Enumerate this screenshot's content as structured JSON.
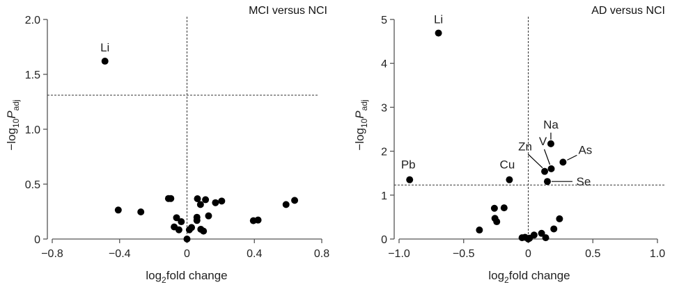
{
  "chart_data": [
    {
      "type": "scatter",
      "title": "MCI versus NCI",
      "xlabel": {
        "prefix": "log",
        "sub": "2",
        "suffix": "fold change"
      },
      "ylabel": {
        "prefix": "−log",
        "sub": "10",
        "mid": "P",
        "sub2": "adj"
      },
      "xlim": [
        -0.8,
        0.8
      ],
      "ylim": [
        0,
        2.0
      ],
      "xticks": [
        -0.8,
        -0.4,
        0,
        0.4,
        0.8
      ],
      "xtick_labels": [
        "−0.8",
        "−0.4",
        "0",
        "0.4",
        "0.8"
      ],
      "yticks": [
        0,
        0.5,
        1.0,
        1.5,
        2.0
      ],
      "ytick_labels": [
        "0",
        "0.5",
        "1.0",
        "1.5",
        "2.0"
      ],
      "threshold": 1.31,
      "points": [
        {
          "x": -0.487,
          "y": 1.62,
          "label": "Li"
        },
        {
          "x": -0.408,
          "y": 0.264
        },
        {
          "x": -0.274,
          "y": 0.247
        },
        {
          "x": -0.11,
          "y": 0.369
        },
        {
          "x": -0.096,
          "y": 0.369
        },
        {
          "x": -0.062,
          "y": 0.194
        },
        {
          "x": -0.034,
          "y": 0.158
        },
        {
          "x": -0.076,
          "y": 0.11
        },
        {
          "x": -0.048,
          "y": 0.084
        },
        {
          "x": 0.0,
          "y": 0.0
        },
        {
          "x": 0.014,
          "y": 0.084
        },
        {
          "x": 0.027,
          "y": 0.105
        },
        {
          "x": 0.062,
          "y": 0.367
        },
        {
          "x": 0.08,
          "y": 0.314
        },
        {
          "x": 0.11,
          "y": 0.358
        },
        {
          "x": 0.059,
          "y": 0.198
        },
        {
          "x": 0.059,
          "y": 0.169
        },
        {
          "x": 0.128,
          "y": 0.211
        },
        {
          "x": 0.082,
          "y": 0.089
        },
        {
          "x": 0.098,
          "y": 0.072
        },
        {
          "x": 0.169,
          "y": 0.331
        },
        {
          "x": 0.206,
          "y": 0.346
        },
        {
          "x": 0.394,
          "y": 0.167
        },
        {
          "x": 0.422,
          "y": 0.173
        },
        {
          "x": 0.588,
          "y": 0.314
        },
        {
          "x": 0.639,
          "y": 0.352
        }
      ]
    },
    {
      "type": "scatter",
      "title": "AD versus NCI",
      "xlabel": {
        "prefix": "log",
        "sub": "2",
        "suffix": "fold change"
      },
      "ylabel": {
        "prefix": "−log",
        "sub": "10",
        "mid": "P",
        "sub2": "adj"
      },
      "xlim": [
        -1.0,
        1.0
      ],
      "ylim": [
        0,
        5
      ],
      "xticks": [
        -1.0,
        -0.5,
        0,
        0.5,
        1.0
      ],
      "xtick_labels": [
        "−1.0",
        "−0.5",
        "0",
        "0.5",
        "1.0"
      ],
      "yticks": [
        0,
        1,
        2,
        3,
        4,
        5
      ],
      "ytick_labels": [
        "0",
        "1",
        "2",
        "3",
        "4",
        "5"
      ],
      "threshold": 1.23,
      "points": [
        {
          "x": -0.695,
          "y": 4.69,
          "label": "Li"
        },
        {
          "x": -0.918,
          "y": 1.35,
          "label": "Pb"
        },
        {
          "x": -0.146,
          "y": 1.35,
          "label": "Cu"
        },
        {
          "x": 0.175,
          "y": 2.17,
          "label": "Na"
        },
        {
          "x": 0.178,
          "y": 1.6,
          "label": "V"
        },
        {
          "x": 0.127,
          "y": 1.54,
          "label": "Zn"
        },
        {
          "x": 0.269,
          "y": 1.75,
          "label": "As"
        },
        {
          "x": 0.148,
          "y": 1.31,
          "label": "Se"
        },
        {
          "x": -0.378,
          "y": 0.205
        },
        {
          "x": -0.262,
          "y": 0.7
        },
        {
          "x": -0.187,
          "y": 0.71
        },
        {
          "x": -0.258,
          "y": 0.47
        },
        {
          "x": -0.244,
          "y": 0.395
        },
        {
          "x": -0.048,
          "y": 0.03
        },
        {
          "x": -0.025,
          "y": 0.04
        },
        {
          "x": 0.0,
          "y": 0.0
        },
        {
          "x": 0.01,
          "y": 0.02
        },
        {
          "x": 0.045,
          "y": 0.09
        },
        {
          "x": 0.103,
          "y": 0.13
        },
        {
          "x": 0.135,
          "y": 0.03
        },
        {
          "x": 0.198,
          "y": 0.23
        },
        {
          "x": 0.242,
          "y": 0.46
        }
      ]
    }
  ]
}
